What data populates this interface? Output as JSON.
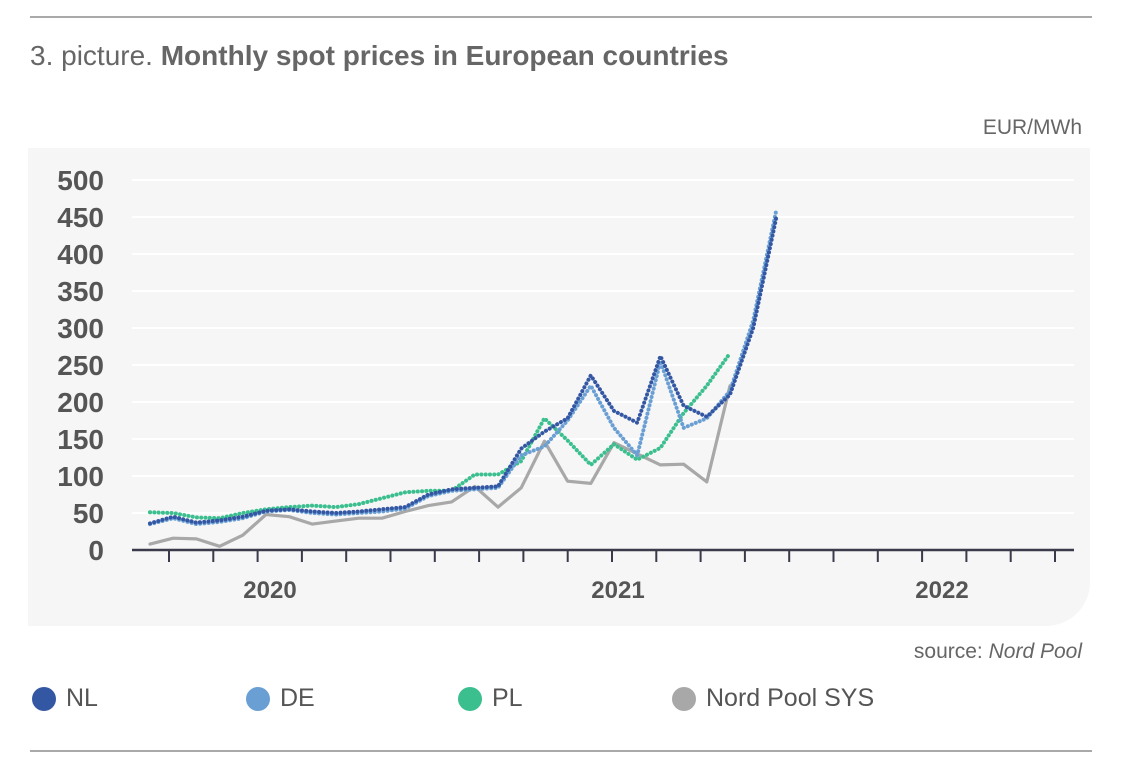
{
  "header": {
    "title_prefix": "3. picture.",
    "title_main": "Monthly spot prices in European countries",
    "unit": "EUR/MWh"
  },
  "footer": {
    "source_label": "source:",
    "source_name": "Nord Pool"
  },
  "colors": {
    "NL": "#3457a3",
    "DE": "#6a9fd4",
    "PL": "#3bbf8f",
    "SYS": "#a8a8a8",
    "axis": "#3a3a4a",
    "grid": "#ffffff",
    "panel": "#f6f6f6"
  },
  "chart_data": {
    "type": "line",
    "title": "Monthly spot prices in European countries",
    "ylabel": "EUR/MWh",
    "xlabel": "",
    "ylim": [
      0,
      500
    ],
    "yticks": [
      0,
      50,
      100,
      150,
      200,
      250,
      300,
      350,
      400,
      450,
      500
    ],
    "x_labels": [
      "2020",
      "2021",
      "2022"
    ],
    "grid": true,
    "legend_position": "bottom",
    "x": [
      "2019-10",
      "2019-11",
      "2019-12",
      "2020-01",
      "2020-02",
      "2020-03",
      "2020-04",
      "2020-05",
      "2020-06",
      "2020-07",
      "2020-08",
      "2020-09",
      "2020-10",
      "2020-11",
      "2020-12",
      "2021-01",
      "2021-02",
      "2021-03",
      "2021-04",
      "2021-05",
      "2021-06",
      "2021-07",
      "2021-08",
      "2021-09",
      "2021-10",
      "2021-11",
      "2021-12",
      "2022-01",
      "2022-02",
      "2022-03",
      "2022-04",
      "2022-05",
      "2022-06",
      "2022-07",
      "2022-08"
    ],
    "series": [
      {
        "name": "NL",
        "style": "dotted",
        "values": [
          36,
          45,
          37,
          40,
          45,
          53,
          55,
          52,
          50,
          52,
          55,
          58,
          75,
          82,
          84,
          86,
          137,
          160,
          178,
          236,
          188,
          172,
          262,
          195,
          180,
          210,
          300,
          450,
          null,
          null,
          null,
          null,
          null,
          null,
          null
        ]
      },
      {
        "name": "DE",
        "style": "dotted",
        "values": [
          35,
          43,
          35,
          38,
          43,
          52,
          54,
          50,
          48,
          50,
          52,
          56,
          73,
          80,
          82,
          84,
          128,
          140,
          175,
          222,
          165,
          128,
          255,
          165,
          178,
          215,
          310,
          460,
          null,
          null,
          null,
          null,
          null,
          null,
          null
        ]
      },
      {
        "name": "PL",
        "style": "dotted",
        "values": [
          51,
          50,
          44,
          43,
          50,
          55,
          58,
          60,
          58,
          62,
          70,
          78,
          80,
          80,
          102,
          102,
          120,
          178,
          148,
          115,
          143,
          122,
          138,
          185,
          222,
          266,
          null,
          null,
          null,
          null,
          null,
          null,
          null,
          null,
          null
        ]
      },
      {
        "name": "Nord Pool SYS",
        "style": "solid",
        "values": [
          8,
          16,
          15,
          5,
          20,
          48,
          45,
          35,
          39,
          43,
          43,
          52,
          60,
          65,
          86,
          58,
          84,
          147,
          93,
          90,
          145,
          130,
          115,
          116,
          92,
          222,
          null,
          null,
          null,
          null,
          null,
          null,
          null,
          null,
          null
        ]
      }
    ]
  }
}
